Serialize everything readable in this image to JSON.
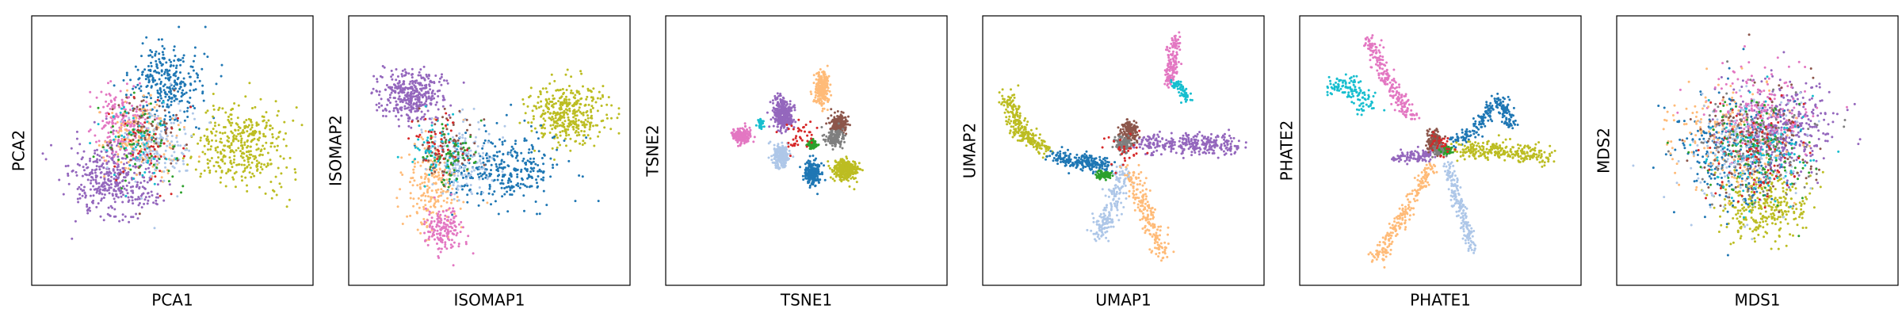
{
  "chart_data": [
    {
      "type": "scatter",
      "xlabel": "PCA1",
      "ylabel": "PCA2",
      "grid": false,
      "ticks": false,
      "clusters": [
        {
          "color": "#9467bd",
          "center": [
            -0.45,
            -0.25
          ],
          "spread": [
            0.3,
            0.28
          ],
          "count": 420
        },
        {
          "color": "#1f77b4",
          "center": [
            -0.05,
            0.55
          ],
          "spread": [
            0.25,
            0.28
          ],
          "count": 300
        },
        {
          "color": "#bcbd22",
          "center": [
            0.55,
            0.05
          ],
          "spread": [
            0.3,
            0.32
          ],
          "count": 380
        },
        {
          "color": "#e377c2",
          "center": [
            -0.4,
            0.25
          ],
          "spread": [
            0.18,
            0.25
          ],
          "count": 180
        },
        {
          "color": "#ffbb78",
          "center": [
            -0.25,
            0.1
          ],
          "spread": [
            0.25,
            0.3
          ],
          "count": 180
        },
        {
          "color": "#aec7e8",
          "center": [
            -0.1,
            0.05
          ],
          "spread": [
            0.25,
            0.3
          ],
          "count": 140
        },
        {
          "color": "#8c564b",
          "center": [
            -0.2,
            0.15
          ],
          "spread": [
            0.25,
            0.3
          ],
          "count": 80
        },
        {
          "color": "#17becf",
          "center": [
            -0.25,
            0.1
          ],
          "spread": [
            0.25,
            0.3
          ],
          "count": 60
        },
        {
          "color": "#2ca02c",
          "center": [
            -0.2,
            0.05
          ],
          "spread": [
            0.25,
            0.3
          ],
          "count": 60
        },
        {
          "color": "#d62728",
          "center": [
            -0.2,
            0.05
          ],
          "spread": [
            0.25,
            0.3
          ],
          "count": 40
        }
      ]
    },
    {
      "type": "scatter",
      "xlabel": "ISOMAP1",
      "ylabel": "ISOMAP2",
      "grid": false,
      "ticks": false,
      "clusters": [
        {
          "color": "#9467bd",
          "center": [
            -0.6,
            0.45
          ],
          "spread": [
            0.22,
            0.18
          ],
          "count": 380
        },
        {
          "color": "#bcbd22",
          "center": [
            0.6,
            0.3
          ],
          "spread": [
            0.28,
            0.22
          ],
          "count": 380
        },
        {
          "color": "#1f77b4",
          "center": [
            0.1,
            -0.15
          ],
          "spread": [
            0.4,
            0.25
          ],
          "count": 320
        },
        {
          "color": "#ffbb78",
          "center": [
            -0.45,
            -0.3
          ],
          "spread": [
            0.2,
            0.35
          ],
          "count": 220
        },
        {
          "color": "#e377c2",
          "center": [
            -0.35,
            -0.65
          ],
          "spread": [
            0.12,
            0.18
          ],
          "count": 160
        },
        {
          "color": "#aec7e8",
          "center": [
            -0.2,
            -0.05
          ],
          "spread": [
            0.25,
            0.28
          ],
          "count": 160
        },
        {
          "color": "#8c564b",
          "center": [
            -0.35,
            0.05
          ],
          "spread": [
            0.2,
            0.25
          ],
          "count": 80
        },
        {
          "color": "#17becf",
          "center": [
            -0.4,
            0.0
          ],
          "spread": [
            0.18,
            0.22
          ],
          "count": 60
        },
        {
          "color": "#2ca02c",
          "center": [
            -0.3,
            -0.05
          ],
          "spread": [
            0.18,
            0.22
          ],
          "count": 60
        },
        {
          "color": "#d62728",
          "center": [
            -0.4,
            0.05
          ],
          "spread": [
            0.18,
            0.22
          ],
          "count": 40
        }
      ]
    },
    {
      "type": "scatter",
      "xlabel": "TSNE1",
      "ylabel": "TSNE2",
      "grid": false,
      "ticks": false,
      "clusters": [
        {
          "color": "#9467bd",
          "center": [
            -0.18,
            0.3
          ],
          "spread": [
            0.07,
            0.12
          ],
          "count": 320
        },
        {
          "color": "#ffbb78",
          "center": [
            0.12,
            0.5
          ],
          "spread": [
            0.05,
            0.12
          ],
          "count": 260
        },
        {
          "color": "#8c564b",
          "center": [
            0.25,
            0.22
          ],
          "spread": [
            0.06,
            0.07
          ],
          "count": 200
        },
        {
          "color": "#e377c2",
          "center": [
            -0.5,
            0.12
          ],
          "spread": [
            0.06,
            0.05
          ],
          "count": 220
        },
        {
          "color": "#aec7e8",
          "center": [
            -0.2,
            -0.05
          ],
          "spread": [
            0.06,
            0.09
          ],
          "count": 200
        },
        {
          "color": "#1f77b4",
          "center": [
            0.05,
            -0.18
          ],
          "spread": [
            0.06,
            0.09
          ],
          "count": 220
        },
        {
          "color": "#bcbd22",
          "center": [
            0.3,
            -0.15
          ],
          "spread": [
            0.09,
            0.08
          ],
          "count": 300
        },
        {
          "color": "#7f7f7f",
          "center": [
            0.22,
            0.1
          ],
          "spread": [
            0.06,
            0.06
          ],
          "count": 140
        },
        {
          "color": "#2ca02c",
          "center": [
            0.05,
            0.05
          ],
          "spread": [
            0.03,
            0.03
          ],
          "count": 90
        },
        {
          "color": "#17becf",
          "center": [
            -0.35,
            0.22
          ],
          "spread": [
            0.02,
            0.03
          ],
          "count": 50
        },
        {
          "color": "#d62728",
          "center": [
            -0.05,
            0.1
          ],
          "spread": [
            0.15,
            0.15
          ],
          "count": 40
        }
      ]
    },
    {
      "type": "scatter",
      "xlabel": "UMAP1",
      "ylabel": "UMAP2",
      "grid": false,
      "ticks": false,
      "clusters": [
        {
          "color": "#bcbd22",
          "path": [
            [
              -0.9,
              0.45
            ],
            [
              -0.8,
              0.15
            ],
            [
              -0.6,
              0.0
            ]
          ],
          "width": 0.06,
          "count": 260
        },
        {
          "color": "#1f77b4",
          "path": [
            [
              -0.55,
              -0.05
            ],
            [
              -0.3,
              -0.1
            ],
            [
              -0.1,
              -0.12
            ]
          ],
          "width": 0.05,
          "count": 220
        },
        {
          "color": "#9467bd",
          "path": [
            [
              0.1,
              0.05
            ],
            [
              0.5,
              0.05
            ],
            [
              0.88,
              0.05
            ]
          ],
          "width": 0.07,
          "count": 300
        },
        {
          "color": "#8c564b",
          "center": [
            0.05,
            0.15
          ],
          "spread": [
            0.06,
            0.08
          ],
          "count": 180
        },
        {
          "color": "#7f7f7f",
          "center": [
            0.0,
            0.05
          ],
          "spread": [
            0.05,
            0.06
          ],
          "count": 120
        },
        {
          "color": "#2ca02c",
          "center": [
            -0.15,
            -0.2
          ],
          "spread": [
            0.05,
            0.03
          ],
          "count": 80
        },
        {
          "color": "#aec7e8",
          "path": [
            [
              0.0,
              -0.15
            ],
            [
              -0.1,
              -0.5
            ],
            [
              -0.2,
              -0.7
            ]
          ],
          "width": 0.06,
          "count": 200
        },
        {
          "color": "#ffbb78",
          "path": [
            [
              0.05,
              -0.15
            ],
            [
              0.2,
              -0.55
            ],
            [
              0.3,
              -0.85
            ]
          ],
          "width": 0.06,
          "count": 200
        },
        {
          "color": "#e377c2",
          "path": [
            [
              0.4,
              0.92
            ],
            [
              0.38,
              0.7
            ],
            [
              0.36,
              0.55
            ]
          ],
          "width": 0.04,
          "count": 150
        },
        {
          "color": "#17becf",
          "path": [
            [
              0.38,
              0.55
            ],
            [
              0.45,
              0.5
            ],
            [
              0.5,
              0.4
            ]
          ],
          "width": 0.03,
          "count": 60
        },
        {
          "color": "#d62728",
          "center": [
            0.0,
            0.0
          ],
          "spread": [
            0.15,
            0.15
          ],
          "count": 30
        }
      ]
    },
    {
      "type": "scatter",
      "xlabel": "PHATE1",
      "ylabel": "PHATE2",
      "grid": false,
      "ticks": false,
      "clusters": [
        {
          "color": "#e377c2",
          "path": [
            [
              -0.55,
              0.9
            ],
            [
              -0.4,
              0.55
            ],
            [
              -0.2,
              0.25
            ]
          ],
          "width": 0.05,
          "count": 200
        },
        {
          "color": "#17becf",
          "path": [
            [
              -0.85,
              0.5
            ],
            [
              -0.7,
              0.55
            ],
            [
              -0.55,
              0.35
            ]
          ],
          "width": 0.07,
          "count": 130
        },
        {
          "color": "#1f77b4",
          "path": [
            [
              0.1,
              0.05
            ],
            [
              0.3,
              0.2
            ],
            [
              0.45,
              0.4
            ],
            [
              0.55,
              0.2
            ]
          ],
          "width": 0.05,
          "count": 220
        },
        {
          "color": "#bcbd22",
          "path": [
            [
              0.15,
              0.0
            ],
            [
              0.5,
              0.0
            ],
            [
              0.85,
              -0.05
            ]
          ],
          "width": 0.06,
          "count": 260
        },
        {
          "color": "#9467bd",
          "path": [
            [
              -0.35,
              -0.05
            ],
            [
              -0.15,
              -0.05
            ],
            [
              0.0,
              0.0
            ]
          ],
          "width": 0.04,
          "count": 120
        },
        {
          "color": "#ffbb78",
          "path": [
            [
              -0.05,
              -0.1
            ],
            [
              -0.3,
              -0.55
            ],
            [
              -0.5,
              -0.9
            ]
          ],
          "width": 0.05,
          "count": 220
        },
        {
          "color": "#aec7e8",
          "path": [
            [
              0.05,
              -0.1
            ],
            [
              0.15,
              -0.45
            ],
            [
              0.25,
              -0.8
            ]
          ],
          "width": 0.04,
          "count": 180
        },
        {
          "color": "#8c564b",
          "center": [
            -0.05,
            0.08
          ],
          "spread": [
            0.05,
            0.07
          ],
          "count": 120
        },
        {
          "color": "#7f7f7f",
          "center": [
            0.0,
            0.0
          ],
          "spread": [
            0.05,
            0.04
          ],
          "count": 80
        },
        {
          "color": "#2ca02c",
          "center": [
            0.05,
            0.0
          ],
          "spread": [
            0.04,
            0.03
          ],
          "count": 50
        },
        {
          "color": "#d62728",
          "center": [
            0.0,
            0.05
          ],
          "spread": [
            0.08,
            0.08
          ],
          "count": 30
        }
      ]
    },
    {
      "type": "scatter",
      "xlabel": "MDS1",
      "ylabel": "MDS2",
      "grid": false,
      "ticks": false,
      "clusters": [
        {
          "color": "#9467bd",
          "center": [
            0.2,
            0.2
          ],
          "spread": [
            0.35,
            0.35
          ],
          "count": 380
        },
        {
          "color": "#bcbd22",
          "center": [
            0.05,
            -0.45
          ],
          "spread": [
            0.3,
            0.25
          ],
          "count": 320
        },
        {
          "color": "#1f77b4",
          "center": [
            -0.2,
            0.0
          ],
          "spread": [
            0.4,
            0.4
          ],
          "count": 260
        },
        {
          "color": "#e377c2",
          "center": [
            0.0,
            0.3
          ],
          "spread": [
            0.4,
            0.35
          ],
          "count": 220
        },
        {
          "color": "#ffbb78",
          "center": [
            -0.2,
            0.1
          ],
          "spread": [
            0.4,
            0.4
          ],
          "count": 200
        },
        {
          "color": "#aec7e8",
          "center": [
            -0.1,
            0.0
          ],
          "spread": [
            0.4,
            0.4
          ],
          "count": 200
        },
        {
          "color": "#8c564b",
          "center": [
            0.0,
            0.05
          ],
          "spread": [
            0.4,
            0.4
          ],
          "count": 150
        },
        {
          "color": "#7f7f7f",
          "center": [
            0.0,
            0.0
          ],
          "spread": [
            0.4,
            0.4
          ],
          "count": 120
        },
        {
          "color": "#2ca02c",
          "center": [
            0.0,
            0.0
          ],
          "spread": [
            0.4,
            0.4
          ],
          "count": 100
        },
        {
          "color": "#17becf",
          "center": [
            0.0,
            0.0
          ],
          "spread": [
            0.4,
            0.4
          ],
          "count": 100
        },
        {
          "color": "#d62728",
          "center": [
            0.0,
            0.0
          ],
          "spread": [
            0.4,
            0.4
          ],
          "count": 80
        }
      ]
    }
  ]
}
